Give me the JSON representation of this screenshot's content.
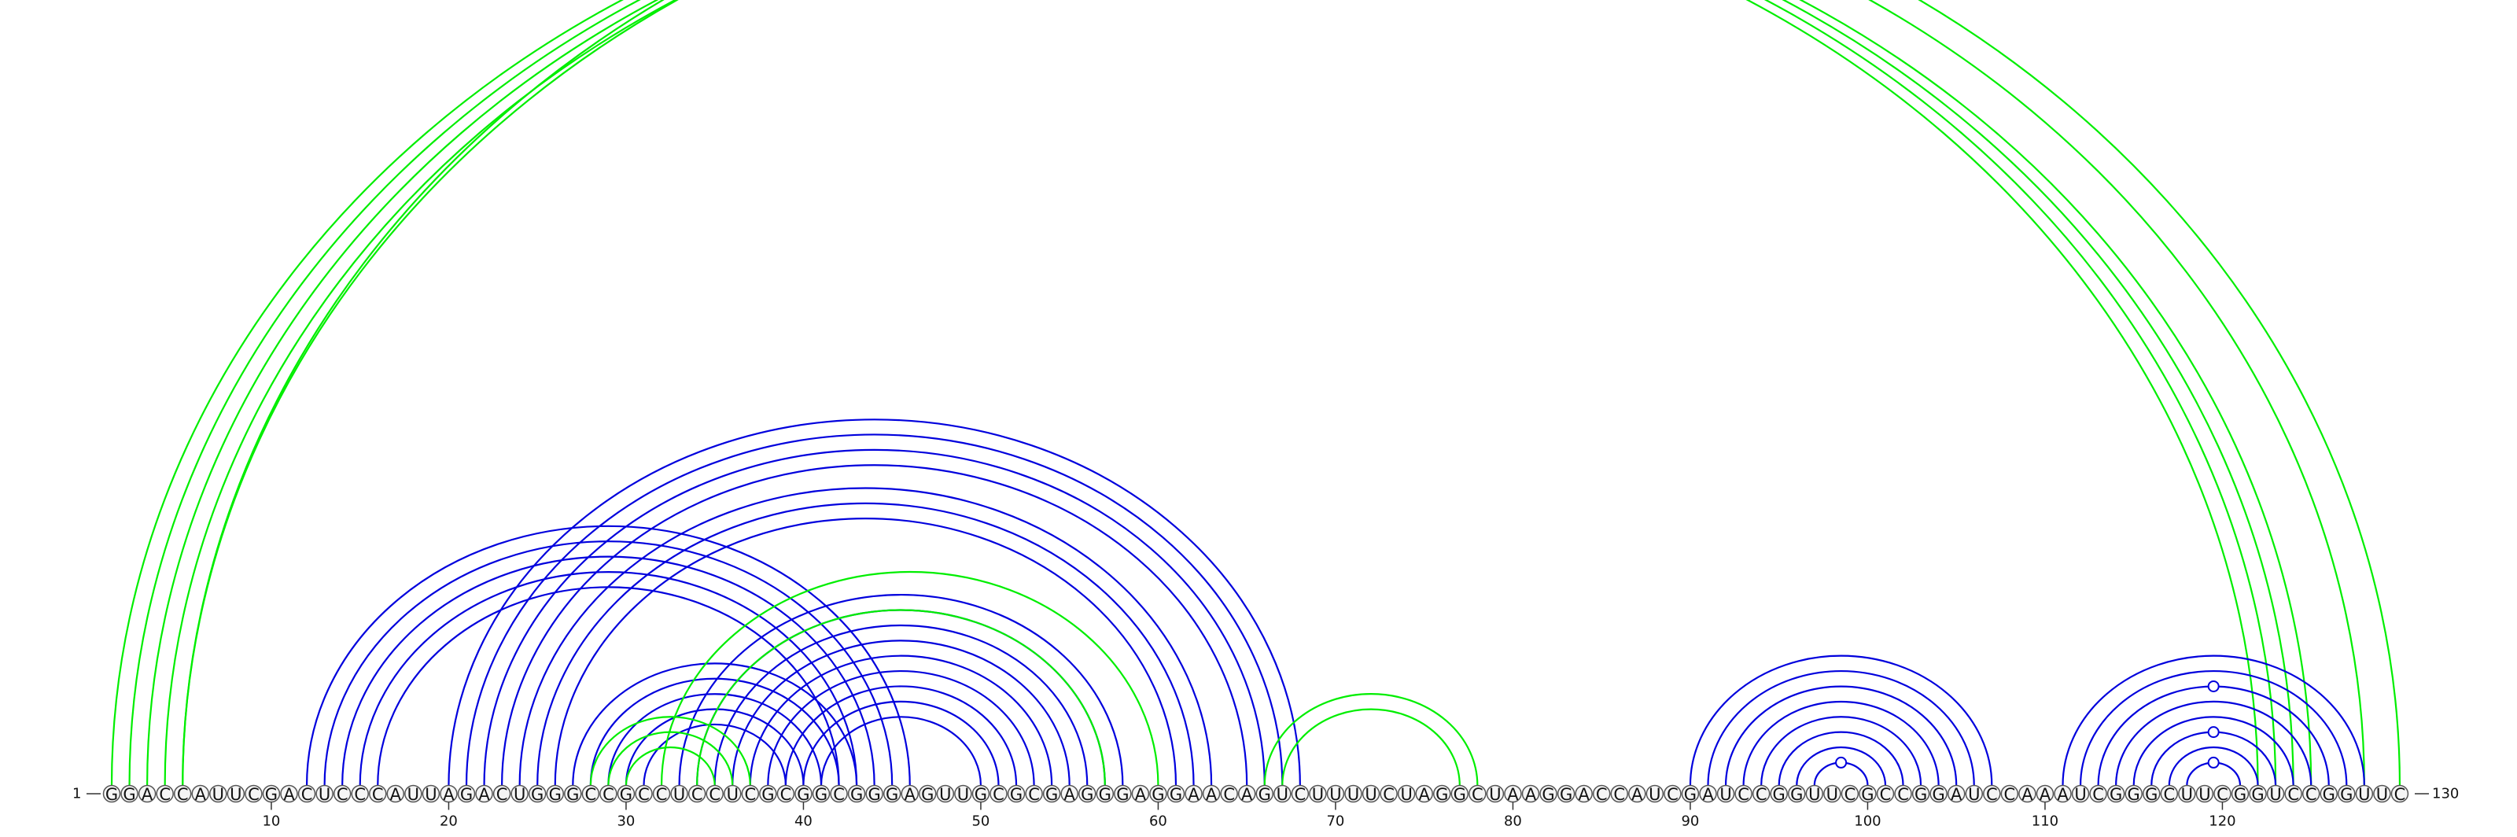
{
  "sequence": "GGACCAUUCGACUCCCAUUAGACUGGGCCGCCUCCUCGCGGCGGGAGUUGCGCGAGGGAGGAACAGUCUUUUCUAGGCUAAGGACCAUCGAUCCGGUUCGCCGGAUCCAAAUCGGGCUUCGGUCCGGUUC",
  "start_label": "1",
  "end_label": "130",
  "tick_labels": [
    "10",
    "20",
    "30",
    "40",
    "50",
    "60",
    "70",
    "80",
    "90",
    "100",
    "110",
    "120"
  ],
  "colors": {
    "blue": "#0000dd",
    "green": "#00ee00"
  },
  "chart_data": {
    "type": "arc",
    "length": 130,
    "ticks": [
      10,
      20,
      30,
      40,
      50,
      60,
      70,
      80,
      90,
      100,
      110,
      120
    ],
    "pairs": [
      {
        "i": 1,
        "j": 122,
        "color": "green"
      },
      {
        "i": 2,
        "j": 123,
        "color": "green"
      },
      {
        "i": 3,
        "j": 124,
        "color": "green"
      },
      {
        "i": 4,
        "j": 125,
        "color": "green"
      },
      {
        "i": 5,
        "j": 128,
        "color": "green"
      },
      {
        "i": 5,
        "j": 130,
        "color": "green"
      },
      {
        "i": 12,
        "j": 46,
        "color": "blue"
      },
      {
        "i": 13,
        "j": 45,
        "color": "blue"
      },
      {
        "i": 14,
        "j": 44,
        "color": "blue"
      },
      {
        "i": 15,
        "j": 43,
        "color": "blue"
      },
      {
        "i": 16,
        "j": 42,
        "color": "blue"
      },
      {
        "i": 20,
        "j": 68,
        "color": "blue"
      },
      {
        "i": 21,
        "j": 67,
        "color": "blue"
      },
      {
        "i": 22,
        "j": 66,
        "color": "blue"
      },
      {
        "i": 23,
        "j": 65,
        "color": "blue"
      },
      {
        "i": 24,
        "j": 63,
        "color": "blue"
      },
      {
        "i": 25,
        "j": 62,
        "color": "blue"
      },
      {
        "i": 26,
        "j": 61,
        "color": "blue"
      },
      {
        "i": 27,
        "j": 43,
        "color": "blue"
      },
      {
        "i": 28,
        "j": 42,
        "color": "blue"
      },
      {
        "i": 29,
        "j": 41,
        "color": "blue"
      },
      {
        "i": 30,
        "j": 40,
        "color": "blue"
      },
      {
        "i": 31,
        "j": 39,
        "color": "blue"
      },
      {
        "i": 32,
        "j": 60,
        "color": "green"
      },
      {
        "i": 33,
        "j": 58,
        "color": "blue"
      },
      {
        "i": 34,
        "j": 57,
        "color": "blue"
      },
      {
        "i": 35,
        "j": 56,
        "color": "blue"
      },
      {
        "i": 36,
        "j": 55,
        "color": "blue"
      },
      {
        "i": 37,
        "j": 54,
        "color": "blue"
      },
      {
        "i": 38,
        "j": 53,
        "color": "blue"
      },
      {
        "i": 39,
        "j": 52,
        "color": "blue"
      },
      {
        "i": 40,
        "j": 51,
        "color": "blue"
      },
      {
        "i": 41,
        "j": 50,
        "color": "blue"
      },
      {
        "i": 28,
        "j": 37,
        "color": "green"
      },
      {
        "i": 29,
        "j": 36,
        "color": "green"
      },
      {
        "i": 30,
        "j": 35,
        "color": "green"
      },
      {
        "i": 34,
        "j": 57,
        "color": "green"
      },
      {
        "i": 66,
        "j": 78,
        "color": "green"
      },
      {
        "i": 67,
        "j": 77,
        "color": "green"
      },
      {
        "i": 90,
        "j": 107,
        "color": "blue"
      },
      {
        "i": 91,
        "j": 106,
        "color": "blue"
      },
      {
        "i": 92,
        "j": 105,
        "color": "blue"
      },
      {
        "i": 93,
        "j": 104,
        "color": "blue"
      },
      {
        "i": 94,
        "j": 103,
        "color": "blue"
      },
      {
        "i": 95,
        "j": 102,
        "color": "blue"
      },
      {
        "i": 96,
        "j": 101,
        "color": "blue"
      },
      {
        "i": 97,
        "j": 100,
        "color": "blue"
      },
      {
        "i": 111,
        "j": 128,
        "color": "blue"
      },
      {
        "i": 112,
        "j": 127,
        "color": "blue"
      },
      {
        "i": 113,
        "j": 126,
        "color": "blue"
      },
      {
        "i": 114,
        "j": 125,
        "color": "blue"
      },
      {
        "i": 115,
        "j": 124,
        "color": "blue"
      },
      {
        "i": 116,
        "j": 123,
        "color": "blue"
      },
      {
        "i": 117,
        "j": 122,
        "color": "blue"
      },
      {
        "i": 118,
        "j": 121,
        "color": "blue"
      }
    ],
    "markers": [
      {
        "pos": 65.5,
        "color": "green",
        "arc_i": 1,
        "arc_j": 130
      },
      {
        "pos": 98.5,
        "color": "blue",
        "arc_i": 97,
        "arc_j": 100
      },
      {
        "pos": 119.5,
        "color": "blue",
        "arc_i": 113,
        "arc_j": 126
      },
      {
        "pos": 119.5,
        "color": "blue",
        "arc_i": 116,
        "arc_j": 123
      },
      {
        "pos": 119.5,
        "color": "blue",
        "arc_i": 118,
        "arc_j": 121
      }
    ]
  }
}
